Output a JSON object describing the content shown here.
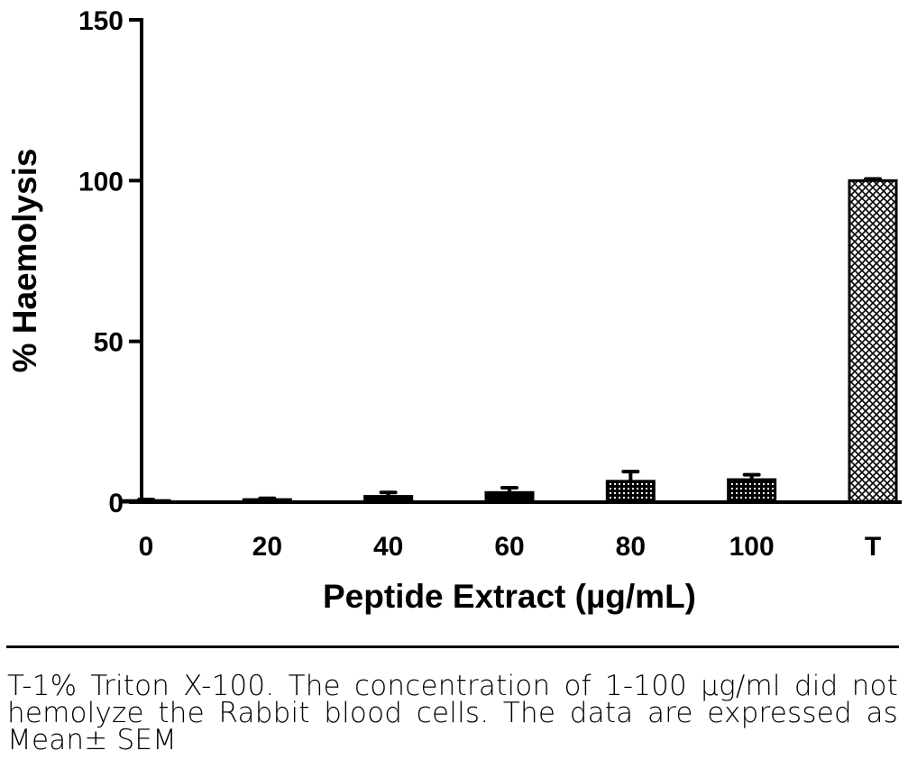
{
  "chart_data": {
    "type": "bar",
    "categories": [
      "0",
      "20",
      "40",
      "60",
      "80",
      "100",
      "T"
    ],
    "values": [
      0.5,
      0.8,
      1.8,
      3,
      6.5,
      7,
      100
    ],
    "errors": [
      0.3,
      0.4,
      1.2,
      1.5,
      3,
      1.5,
      0.5
    ],
    "xlabel": "Peptide Extract (µg/mL)",
    "ylabel": "% Haemolysis",
    "ylim": [
      0,
      150
    ],
    "yticks": [
      0,
      50,
      100,
      150
    ],
    "grid": false,
    "patterns": [
      "solid",
      "solid",
      "solid",
      "solid",
      "dotted",
      "dotted",
      "crosshatch"
    ]
  },
  "caption": "T-1% Triton X-100. The concentration of 1-100 µg/ml did not hemolyze the Rabbit blood cells. The data are expressed as Mean± SEM"
}
